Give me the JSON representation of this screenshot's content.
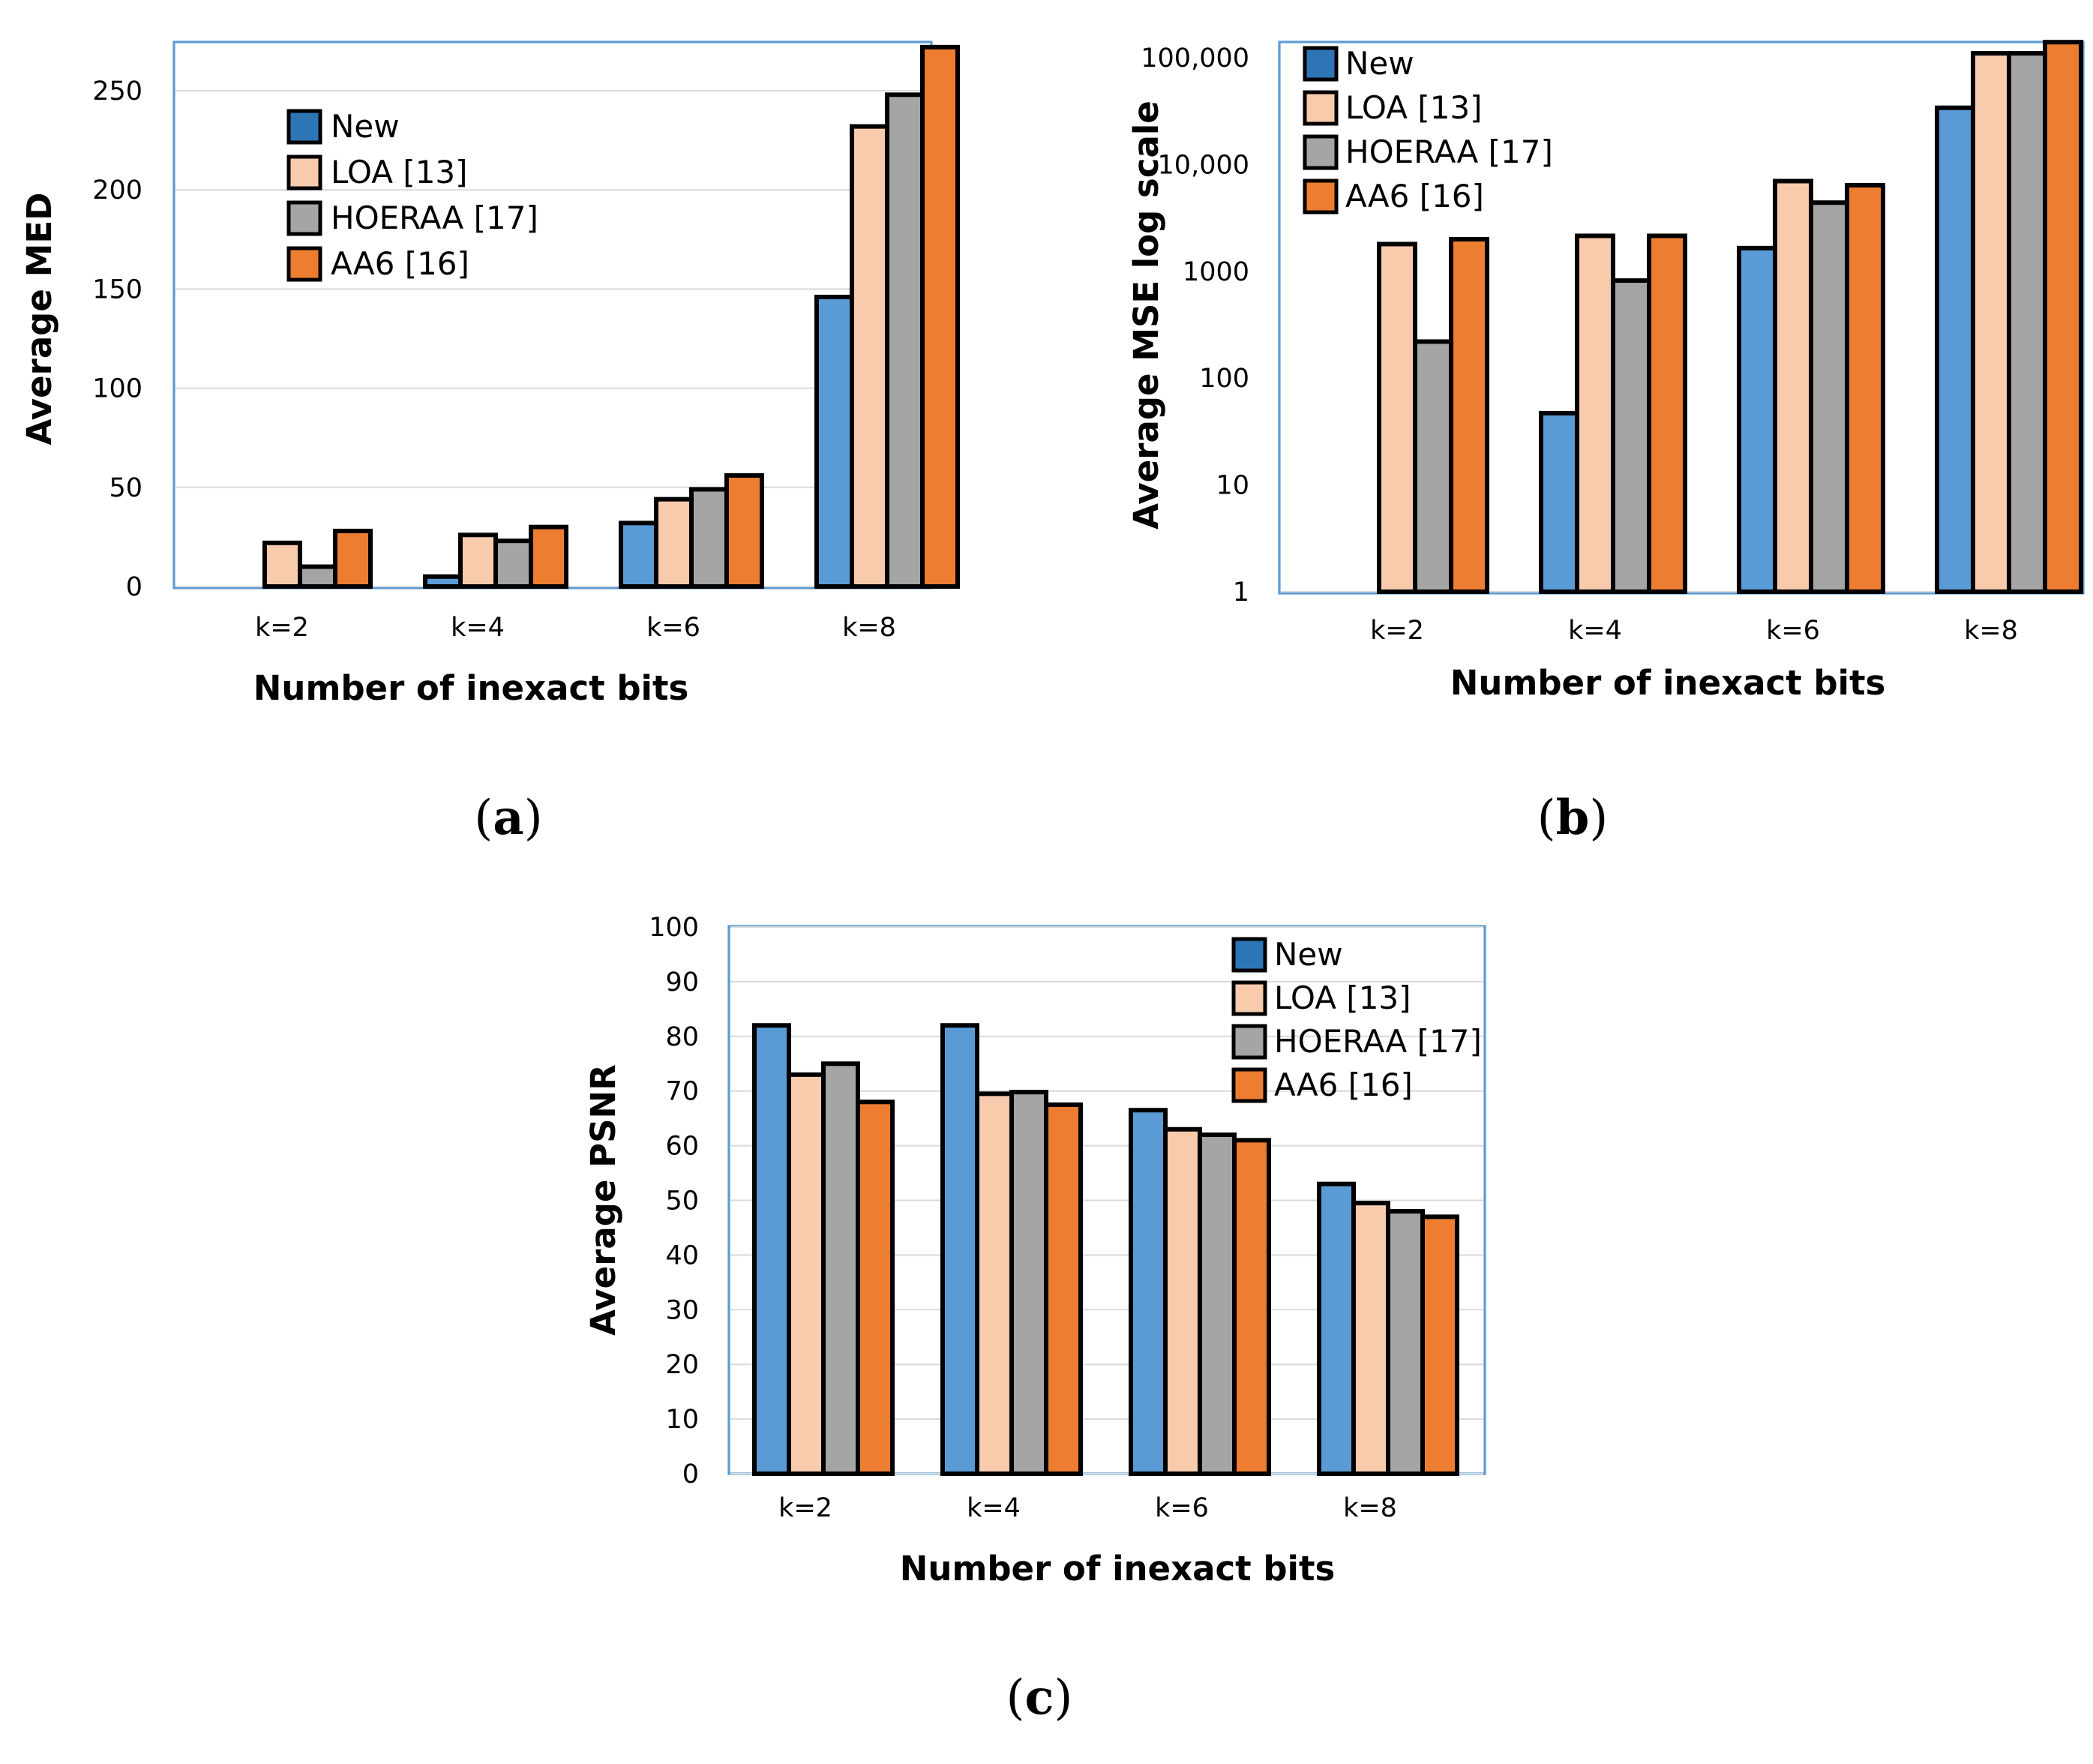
{
  "chart_data": [
    {
      "panel": "a",
      "type": "bar",
      "title": "",
      "caption": "(a)",
      "caption_letter": "a",
      "xlabel": "Number of inexact bits",
      "ylabel": "Average MED",
      "categories": [
        "k=2",
        "k=4",
        "k=6",
        "k=8"
      ],
      "series": [
        {
          "name": "New",
          "values": [
            0,
            5,
            32,
            146
          ]
        },
        {
          "name": "LOA [13]",
          "values": [
            22,
            26,
            44,
            232
          ]
        },
        {
          "name": "HOERAA [17]",
          "values": [
            10,
            23,
            49,
            248
          ]
        },
        {
          "name": "AA6 [16]",
          "values": [
            28,
            30,
            56,
            272
          ]
        }
      ],
      "yscale": "linear",
      "ylim": [
        0,
        280
      ],
      "yticks": [
        0,
        50,
        100,
        150,
        200,
        250
      ],
      "ytick_labels": [
        "0",
        "50",
        "100",
        "150",
        "200",
        "250"
      ],
      "grid": true,
      "legend_placement": "upper-left"
    },
    {
      "panel": "b",
      "type": "bar",
      "title": "",
      "caption": "(b)",
      "caption_letter": "b",
      "xlabel": "Number of inexact bits",
      "ylabel": "Average MSE log scale",
      "categories": [
        "k=2",
        "k=4",
        "k=6",
        "k=8"
      ],
      "series": [
        {
          "name": "New",
          "values": [
            1,
            47,
            1650,
            34000
          ]
        },
        {
          "name": "LOA [13]",
          "values": [
            1800,
            2150,
            7000,
            110000
          ]
        },
        {
          "name": "HOERAA [17]",
          "values": [
            220,
            820,
            4400,
            110000
          ]
        },
        {
          "name": "AA6 [16]",
          "values": [
            2000,
            2150,
            6400,
            140000
          ]
        }
      ],
      "yscale": "log",
      "ylim": [
        1,
        140000
      ],
      "yticks": [
        1,
        10,
        100,
        1000,
        10000,
        100000
      ],
      "ytick_labels": [
        "1",
        "10",
        "100",
        "1000",
        "10,000",
        "100,000"
      ],
      "grid": false,
      "legend_placement": "top-left"
    },
    {
      "panel": "c",
      "type": "bar",
      "title": "",
      "caption": "(c)",
      "caption_letter": "c",
      "xlabel": "Number of inexact bits",
      "ylabel": "Average PSNR",
      "categories": [
        "k=2",
        "k=4",
        "k=6",
        "k=8"
      ],
      "series": [
        {
          "name": "New",
          "values": [
            82,
            82,
            66.5,
            53
          ]
        },
        {
          "name": "LOA [13]",
          "values": [
            73,
            69.5,
            63,
            49.5
          ]
        },
        {
          "name": "HOERAA [17]",
          "values": [
            75,
            69.8,
            62,
            48
          ]
        },
        {
          "name": "AA6 [16]",
          "values": [
            68,
            67.5,
            61,
            47
          ]
        }
      ],
      "yscale": "linear",
      "ylim": [
        0,
        100
      ],
      "yticks": [
        0,
        10,
        20,
        30,
        40,
        50,
        60,
        70,
        80,
        90,
        100
      ],
      "ytick_labels": [
        "0",
        "10",
        "20",
        "30",
        "40",
        "50",
        "60",
        "70",
        "80",
        "90",
        "100"
      ],
      "grid": true,
      "legend_placement": "top-right"
    }
  ],
  "colors": {
    "New": "#5b9bd5",
    "LOA [13]": "#f8cbad",
    "HOERAA [17]": "#a5a5a5",
    "AA6 [16]": "#ed7d31",
    "legend_New": "#2e75b6",
    "frame": "#5b9bd5",
    "grid": "#d9d9d9"
  }
}
